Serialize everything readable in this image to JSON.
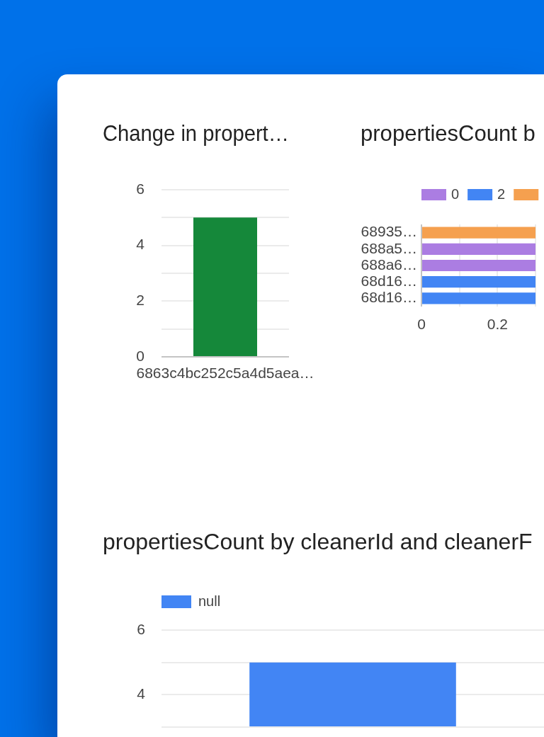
{
  "chart_data": [
    {
      "type": "bar",
      "title": "Change in propert…",
      "categories": [
        "6863c4bc252c5a4d5aea…"
      ],
      "values": [
        5
      ],
      "color": "#15883a",
      "ylim": [
        0,
        6
      ],
      "yticks": [
        0,
        {
          "value": 1,
          "label": null
        },
        2,
        {
          "value": 3,
          "label": null
        },
        4,
        {
          "value": 5,
          "label": null
        },
        6
      ],
      "grid": "y"
    },
    {
      "type": "bar",
      "orientation": "horizontal",
      "stacked": true,
      "title": "propertiesCount b",
      "categories": [
        "68935…",
        "688a5…",
        "688a6…",
        "68d16…",
        "68d16…"
      ],
      "series": [
        {
          "name": "0",
          "color": "#ab7de2",
          "values": [
            null,
            0.3,
            0.3,
            null,
            null
          ]
        },
        {
          "name": "2",
          "color": "#4285f4",
          "values": [
            null,
            null,
            null,
            0.3,
            0.3
          ]
        },
        {
          "color": "#f5a04f",
          "values": [
            0.3,
            null,
            null,
            null,
            null
          ]
        }
      ],
      "xlim": [
        0,
        0.3
      ],
      "xticks": [
        0,
        {
          "value": 0.1,
          "label": null
        },
        0.2,
        {
          "value": 0.3,
          "label": null
        }
      ],
      "grid": "x",
      "legend": "top left"
    },
    {
      "type": "bar",
      "title": "propertiesCount by cleanerId and cleanerF",
      "categories": [
        null
      ],
      "series": [
        {
          "name": "null",
          "color": "#4285f4",
          "values": [
            5
          ]
        }
      ],
      "ylim": [
        3,
        6
      ],
      "yticks": [
        {
          "value": 3,
          "label": null
        },
        4,
        {
          "value": 5,
          "label": null
        },
        6
      ],
      "grid": "y",
      "legend": "top left"
    }
  ]
}
